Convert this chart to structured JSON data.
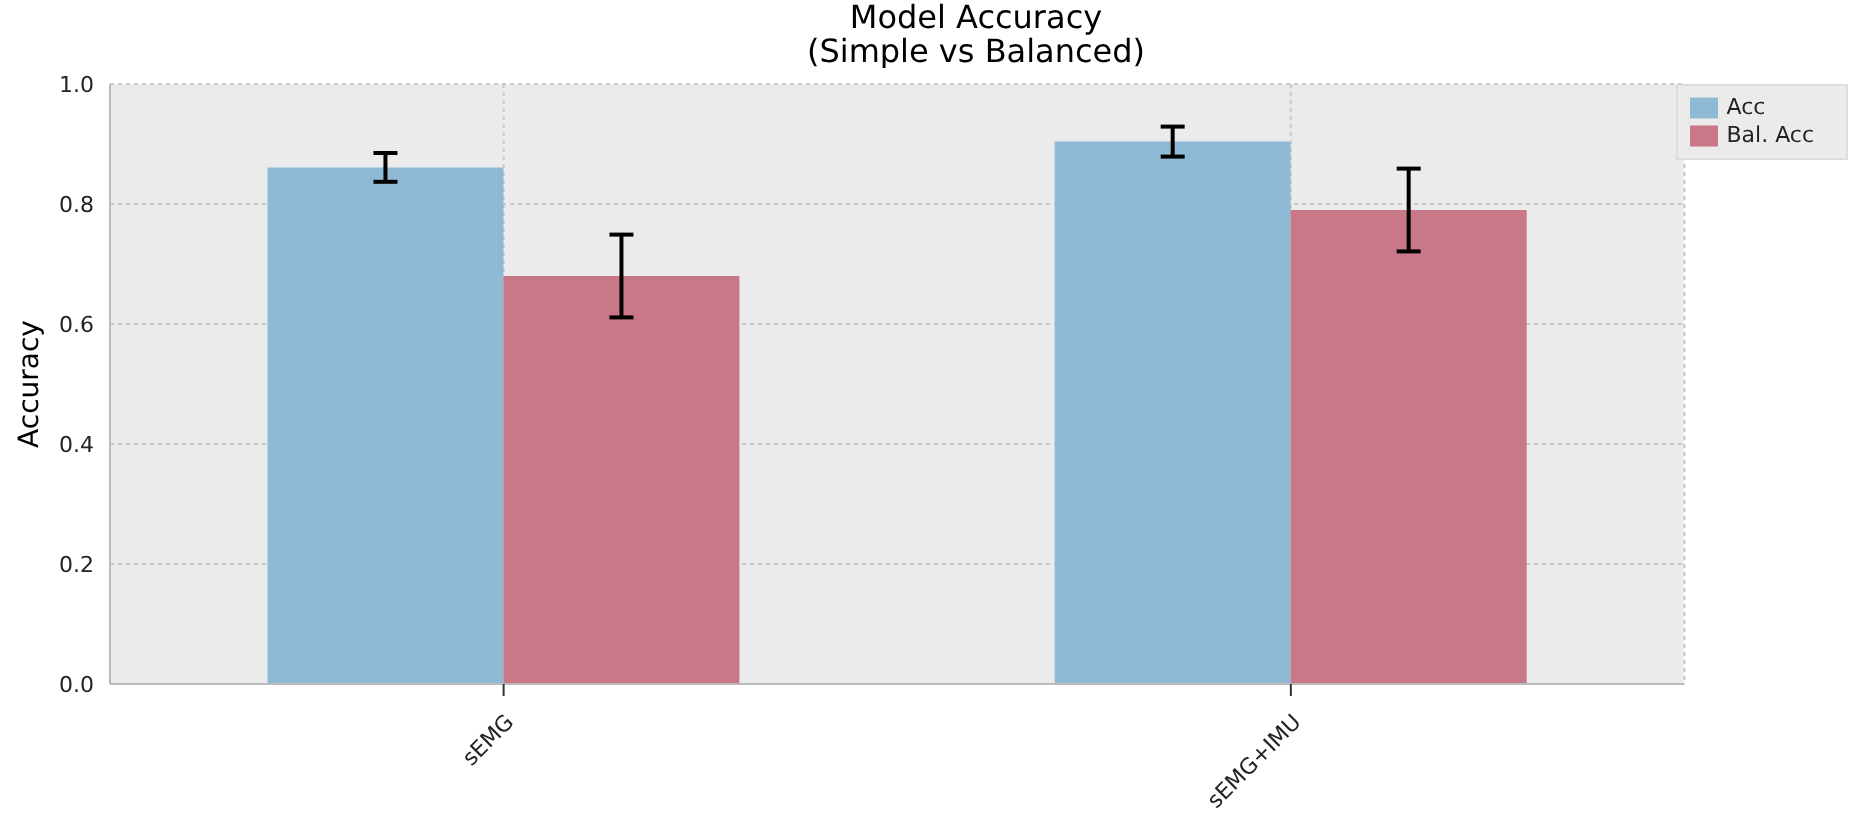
{
  "chart_data": {
    "type": "bar",
    "title": "Model Accuracy\n(Simple vs Balanced)",
    "ylabel": "Accuracy",
    "categories": [
      "sEMG",
      "sEMG+IMU"
    ],
    "series": [
      {
        "name": "Acc",
        "color": "#8fbad5",
        "values": [
          0.861,
          0.904
        ],
        "errors": [
          0.024,
          0.025
        ]
      },
      {
        "name": "Bal. Acc",
        "color": "#c97888",
        "values": [
          0.68,
          0.79
        ],
        "errors": [
          0.069,
          0.069
        ]
      }
    ],
    "ylim": [
      0,
      1
    ],
    "yticks": [
      {
        "value": 0,
        "label": "0.0"
      },
      0.2,
      0.4,
      0.6,
      0.8,
      {
        "value": 1,
        "label": "1.0"
      }
    ],
    "grid": true,
    "legend": "top right"
  }
}
